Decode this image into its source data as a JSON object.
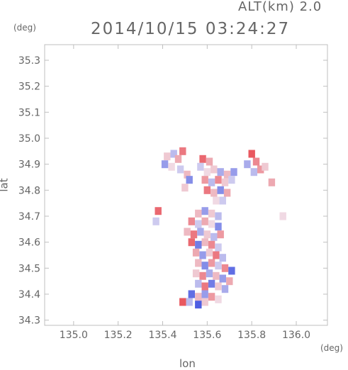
{
  "header": {
    "altitude_label": "ALT(km) 2.0",
    "timestamp": "2014/10/15 03:24:27"
  },
  "axes": {
    "y_unit": "(deg)",
    "x_unit": "(deg)",
    "x_label": "lon",
    "y_label": "lat"
  },
  "chart_data": {
    "type": "heatmap",
    "title": "2014/10/15 03:24:27",
    "xlabel": "lon",
    "ylabel": "lat",
    "xlim": [
      134.87,
      136.14
    ],
    "ylim": [
      34.28,
      35.36
    ],
    "xticks": [
      135.0,
      135.2,
      135.4,
      135.6,
      135.8,
      136.0
    ],
    "xtick_labels": [
      "135.0",
      "135.2",
      "135.4",
      "135.6",
      "135.8",
      "136.0"
    ],
    "yticks": [
      34.3,
      34.4,
      34.5,
      34.6,
      34.7,
      34.8,
      34.9,
      35.0,
      35.1,
      35.2,
      35.3
    ],
    "ytick_labels": [
      "34.3",
      "34.4",
      "34.5",
      "34.6",
      "34.7",
      "34.8",
      "34.9",
      "35.0",
      "35.1",
      "35.2",
      "35.3"
    ],
    "grid": false,
    "colors": {
      "positive": "#e8484f",
      "negative": "#3c4fe0",
      "neutral": "#f1e9f3"
    },
    "cells": [
      {
        "lon": 135.42,
        "lat": 34.93,
        "v": 0.2
      },
      {
        "lon": 135.45,
        "lat": 34.94,
        "v": -0.3
      },
      {
        "lon": 135.47,
        "lat": 34.92,
        "v": 0.4
      },
      {
        "lon": 135.49,
        "lat": 34.95,
        "v": 0.7
      },
      {
        "lon": 135.41,
        "lat": 34.9,
        "v": -0.5
      },
      {
        "lon": 135.44,
        "lat": 34.89,
        "v": 0.1
      },
      {
        "lon": 135.48,
        "lat": 34.88,
        "v": -0.2
      },
      {
        "lon": 135.51,
        "lat": 34.86,
        "v": 0.3
      },
      {
        "lon": 135.52,
        "lat": 34.84,
        "v": -0.6
      },
      {
        "lon": 135.5,
        "lat": 34.81,
        "v": 0.2
      },
      {
        "lon": 135.58,
        "lat": 34.92,
        "v": 0.8
      },
      {
        "lon": 135.61,
        "lat": 34.91,
        "v": 0.4
      },
      {
        "lon": 135.57,
        "lat": 34.89,
        "v": -0.2
      },
      {
        "lon": 135.6,
        "lat": 34.87,
        "v": 0.1
      },
      {
        "lon": 135.63,
        "lat": 34.88,
        "v": 0.2
      },
      {
        "lon": 135.66,
        "lat": 34.87,
        "v": -0.4
      },
      {
        "lon": 135.69,
        "lat": 34.86,
        "v": 0.3
      },
      {
        "lon": 135.72,
        "lat": 34.87,
        "v": -0.5
      },
      {
        "lon": 135.59,
        "lat": 34.84,
        "v": 0.5
      },
      {
        "lon": 135.62,
        "lat": 34.83,
        "v": -0.3
      },
      {
        "lon": 135.65,
        "lat": 34.84,
        "v": 0.6
      },
      {
        "lon": 135.68,
        "lat": 34.83,
        "v": 0.2
      },
      {
        "lon": 135.71,
        "lat": 34.84,
        "v": -0.2
      },
      {
        "lon": 135.6,
        "lat": 34.8,
        "v": 0.7
      },
      {
        "lon": 135.63,
        "lat": 34.79,
        "v": 0.3
      },
      {
        "lon": 135.66,
        "lat": 34.8,
        "v": -0.6
      },
      {
        "lon": 135.69,
        "lat": 34.79,
        "v": 0.4
      },
      {
        "lon": 135.64,
        "lat": 34.76,
        "v": 0.1
      },
      {
        "lon": 135.67,
        "lat": 34.76,
        "v": -0.2
      },
      {
        "lon": 135.8,
        "lat": 34.94,
        "v": 0.9
      },
      {
        "lon": 135.82,
        "lat": 34.91,
        "v": 0.6
      },
      {
        "lon": 135.78,
        "lat": 34.9,
        "v": -0.4
      },
      {
        "lon": 135.84,
        "lat": 34.88,
        "v": 0.5
      },
      {
        "lon": 135.81,
        "lat": 34.87,
        "v": -0.3
      },
      {
        "lon": 135.86,
        "lat": 34.89,
        "v": 0.2
      },
      {
        "lon": 135.89,
        "lat": 34.83,
        "v": 0.4
      },
      {
        "lon": 135.38,
        "lat": 34.72,
        "v": 0.8
      },
      {
        "lon": 135.37,
        "lat": 34.68,
        "v": -0.2
      },
      {
        "lon": 135.94,
        "lat": 34.7,
        "v": 0.1
      },
      {
        "lon": 135.56,
        "lat": 34.71,
        "v": 0.3
      },
      {
        "lon": 135.59,
        "lat": 34.72,
        "v": -0.5
      },
      {
        "lon": 135.62,
        "lat": 34.71,
        "v": 0.2
      },
      {
        "lon": 135.65,
        "lat": 34.7,
        "v": -0.3
      },
      {
        "lon": 135.53,
        "lat": 34.68,
        "v": 0.6
      },
      {
        "lon": 135.56,
        "lat": 34.67,
        "v": -0.2
      },
      {
        "lon": 135.59,
        "lat": 34.68,
        "v": 0.4
      },
      {
        "lon": 135.62,
        "lat": 34.67,
        "v": 0.1
      },
      {
        "lon": 135.65,
        "lat": 34.66,
        "v": -0.6
      },
      {
        "lon": 135.51,
        "lat": 34.64,
        "v": 0.3
      },
      {
        "lon": 135.54,
        "lat": 34.63,
        "v": 0.7
      },
      {
        "lon": 135.57,
        "lat": 34.64,
        "v": -0.4
      },
      {
        "lon": 135.6,
        "lat": 34.63,
        "v": 0.2
      },
      {
        "lon": 135.63,
        "lat": 34.62,
        "v": -0.3
      },
      {
        "lon": 135.66,
        "lat": 34.63,
        "v": 0.5
      },
      {
        "lon": 135.53,
        "lat": 34.6,
        "v": 0.8
      },
      {
        "lon": 135.56,
        "lat": 34.59,
        "v": -0.7
      },
      {
        "lon": 135.59,
        "lat": 34.6,
        "v": 0.3
      },
      {
        "lon": 135.62,
        "lat": 34.59,
        "v": 0.6
      },
      {
        "lon": 135.65,
        "lat": 34.58,
        "v": -0.2
      },
      {
        "lon": 135.55,
        "lat": 34.56,
        "v": 0.4
      },
      {
        "lon": 135.58,
        "lat": 34.55,
        "v": -0.5
      },
      {
        "lon": 135.61,
        "lat": 34.56,
        "v": 0.2
      },
      {
        "lon": 135.64,
        "lat": 34.55,
        "v": 0.7
      },
      {
        "lon": 135.67,
        "lat": 34.54,
        "v": -0.3
      },
      {
        "lon": 135.56,
        "lat": 34.52,
        "v": 0.3
      },
      {
        "lon": 135.59,
        "lat": 34.51,
        "v": -0.6
      },
      {
        "lon": 135.62,
        "lat": 34.52,
        "v": 0.5
      },
      {
        "lon": 135.65,
        "lat": 34.51,
        "v": -0.2
      },
      {
        "lon": 135.68,
        "lat": 34.5,
        "v": 0.6
      },
      {
        "lon": 135.71,
        "lat": 34.49,
        "v": -0.8
      },
      {
        "lon": 135.55,
        "lat": 34.48,
        "v": 0.2
      },
      {
        "lon": 135.58,
        "lat": 34.47,
        "v": 0.6
      },
      {
        "lon": 135.61,
        "lat": 34.48,
        "v": -0.4
      },
      {
        "lon": 135.64,
        "lat": 34.47,
        "v": 0.3
      },
      {
        "lon": 135.67,
        "lat": 34.46,
        "v": -0.5
      },
      {
        "lon": 135.7,
        "lat": 34.45,
        "v": 0.4
      },
      {
        "lon": 135.56,
        "lat": 34.44,
        "v": -0.3
      },
      {
        "lon": 135.59,
        "lat": 34.43,
        "v": 0.7
      },
      {
        "lon": 135.62,
        "lat": 34.44,
        "v": -0.7
      },
      {
        "lon": 135.65,
        "lat": 34.43,
        "v": 0.2
      },
      {
        "lon": 135.68,
        "lat": 34.42,
        "v": -0.4
      },
      {
        "lon": 135.53,
        "lat": 34.4,
        "v": -0.8
      },
      {
        "lon": 135.56,
        "lat": 34.39,
        "v": 0.3
      },
      {
        "lon": 135.59,
        "lat": 34.4,
        "v": -0.5
      },
      {
        "lon": 135.62,
        "lat": 34.39,
        "v": 0.5
      },
      {
        "lon": 135.65,
        "lat": 34.38,
        "v": 0.1
      },
      {
        "lon": 135.49,
        "lat": 34.37,
        "v": 0.9
      },
      {
        "lon": 135.52,
        "lat": 34.37,
        "v": -0.3
      },
      {
        "lon": 135.56,
        "lat": 34.36,
        "v": -0.9
      },
      {
        "lon": 135.59,
        "lat": 34.37,
        "v": 0.2
      }
    ]
  }
}
